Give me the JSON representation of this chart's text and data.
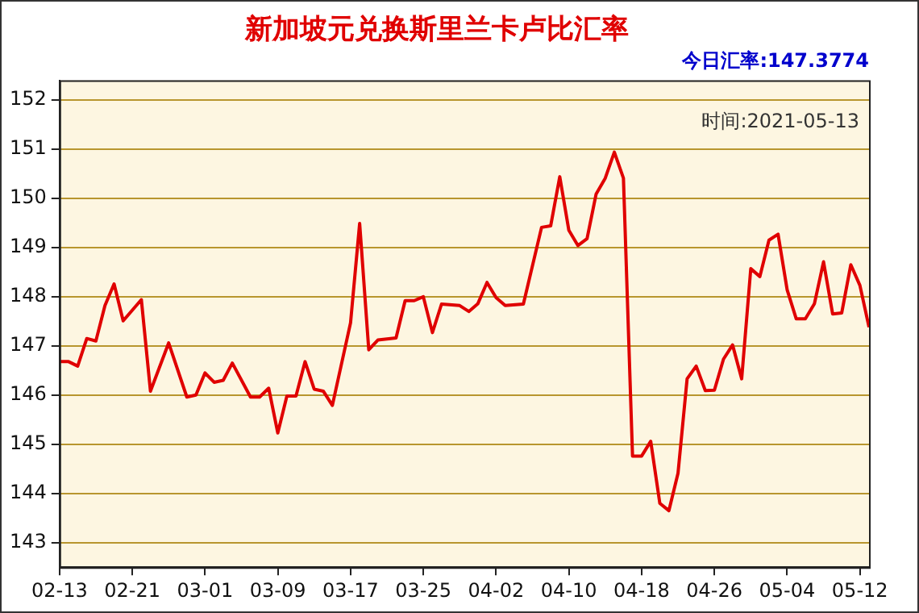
{
  "chart_data": {
    "type": "line",
    "title": "新加坡元兑换斯里兰卡卢比汇率",
    "subtitle": "今日汇率:147.3774",
    "annotations": [
      "时间:2021-05-13"
    ],
    "x": [
      "--02-13",
      "--02-14",
      "--02-15",
      "--02-16",
      "--02-17",
      "--02-18",
      "--02-19",
      "--02-20",
      "--02-22",
      "--02-23",
      "--02-25",
      "--02-27",
      "--02-28",
      "--03-01",
      "--03-02",
      "--03-03",
      "--03-04",
      "--03-06",
      "--03-07",
      "--03-08",
      "--03-09",
      "--03-10",
      "--03-11",
      "--03-12",
      "--03-13",
      "--03-14",
      "--03-15",
      "--03-17",
      "--03-18",
      "--03-19",
      "--03-20",
      "--03-22",
      "--03-23",
      "--03-24",
      "--03-25",
      "--03-26",
      "--03-27",
      "--03-29",
      "--03-30",
      "--03-31",
      "--04-01",
      "--04-02",
      "--04-03",
      "--04-05",
      "--04-07",
      "--04-08",
      "--04-09",
      "--04-10",
      "--04-11",
      "--04-12",
      "--04-13",
      "--04-14",
      "--04-15",
      "--04-16",
      "--04-17",
      "--04-18",
      "--04-19",
      "--04-20",
      "--04-21",
      "--04-22",
      "--04-23",
      "--04-24",
      "--04-25",
      "--04-26",
      "--04-27",
      "--04-28",
      "--04-29",
      "--04-30",
      "--05-01",
      "--05-02",
      "--05-03",
      "--05-04",
      "--05-05",
      "--05-06",
      "--05-07",
      "--05-08",
      "--05-09",
      "--05-10",
      "--05-11",
      "--05-12",
      "--05-13"
    ],
    "series": [
      {
        "color": "#e00000",
        "values": [
          146.68,
          146.68,
          146.59,
          147.15,
          147.1,
          147.82,
          148.26,
          147.51,
          147.94,
          146.08,
          147.06,
          145.96,
          146.0,
          146.45,
          146.26,
          146.3,
          146.65,
          145.96,
          145.96,
          146.14,
          145.23,
          145.98,
          145.98,
          146.68,
          146.12,
          146.08,
          145.79,
          147.47,
          149.49,
          146.92,
          147.12,
          147.16,
          147.92,
          147.92,
          148.0,
          147.27,
          147.85,
          147.82,
          147.7,
          147.86,
          148.29,
          147.98,
          147.82,
          147.85,
          149.41,
          149.44,
          150.44,
          149.35,
          149.04,
          149.18,
          150.09,
          150.41,
          150.94,
          150.41,
          144.76,
          144.76,
          145.06,
          143.8,
          143.65,
          144.41,
          146.33,
          146.59,
          146.09,
          146.1,
          146.73,
          147.02,
          146.33,
          148.57,
          148.41,
          149.15,
          149.27,
          148.14,
          147.55,
          147.55,
          147.86,
          148.71,
          147.65,
          147.67,
          148.65,
          148.23,
          147.38
        ]
      }
    ],
    "xlim": [
      "--02-13",
      "--05-13"
    ],
    "xticks": [
      {
        "value": "--02-13",
        "label": "02-13"
      },
      {
        "value": "--02-21",
        "label": "02-21"
      },
      {
        "value": "--03-01",
        "label": "03-01"
      },
      {
        "value": "--03-09",
        "label": "03-09"
      },
      {
        "value": "--03-17",
        "label": "03-17"
      },
      {
        "value": "--03-25",
        "label": "03-25"
      },
      {
        "value": "--04-02",
        "label": "04-02"
      },
      {
        "value": "--04-10",
        "label": "04-10"
      },
      {
        "value": "--04-18",
        "label": "04-18"
      },
      {
        "value": "--04-26",
        "label": "04-26"
      },
      {
        "value": "--05-04",
        "label": "05-04"
      },
      {
        "value": "--05-12",
        "label": "05-12"
      }
    ],
    "ylim": [
      142.5,
      152.4
    ],
    "yticks": [
      143,
      144,
      145,
      146,
      147,
      148,
      149,
      150,
      151,
      152
    ],
    "grid": "y",
    "legend": false,
    "marker": "none",
    "line_style": "solid"
  }
}
